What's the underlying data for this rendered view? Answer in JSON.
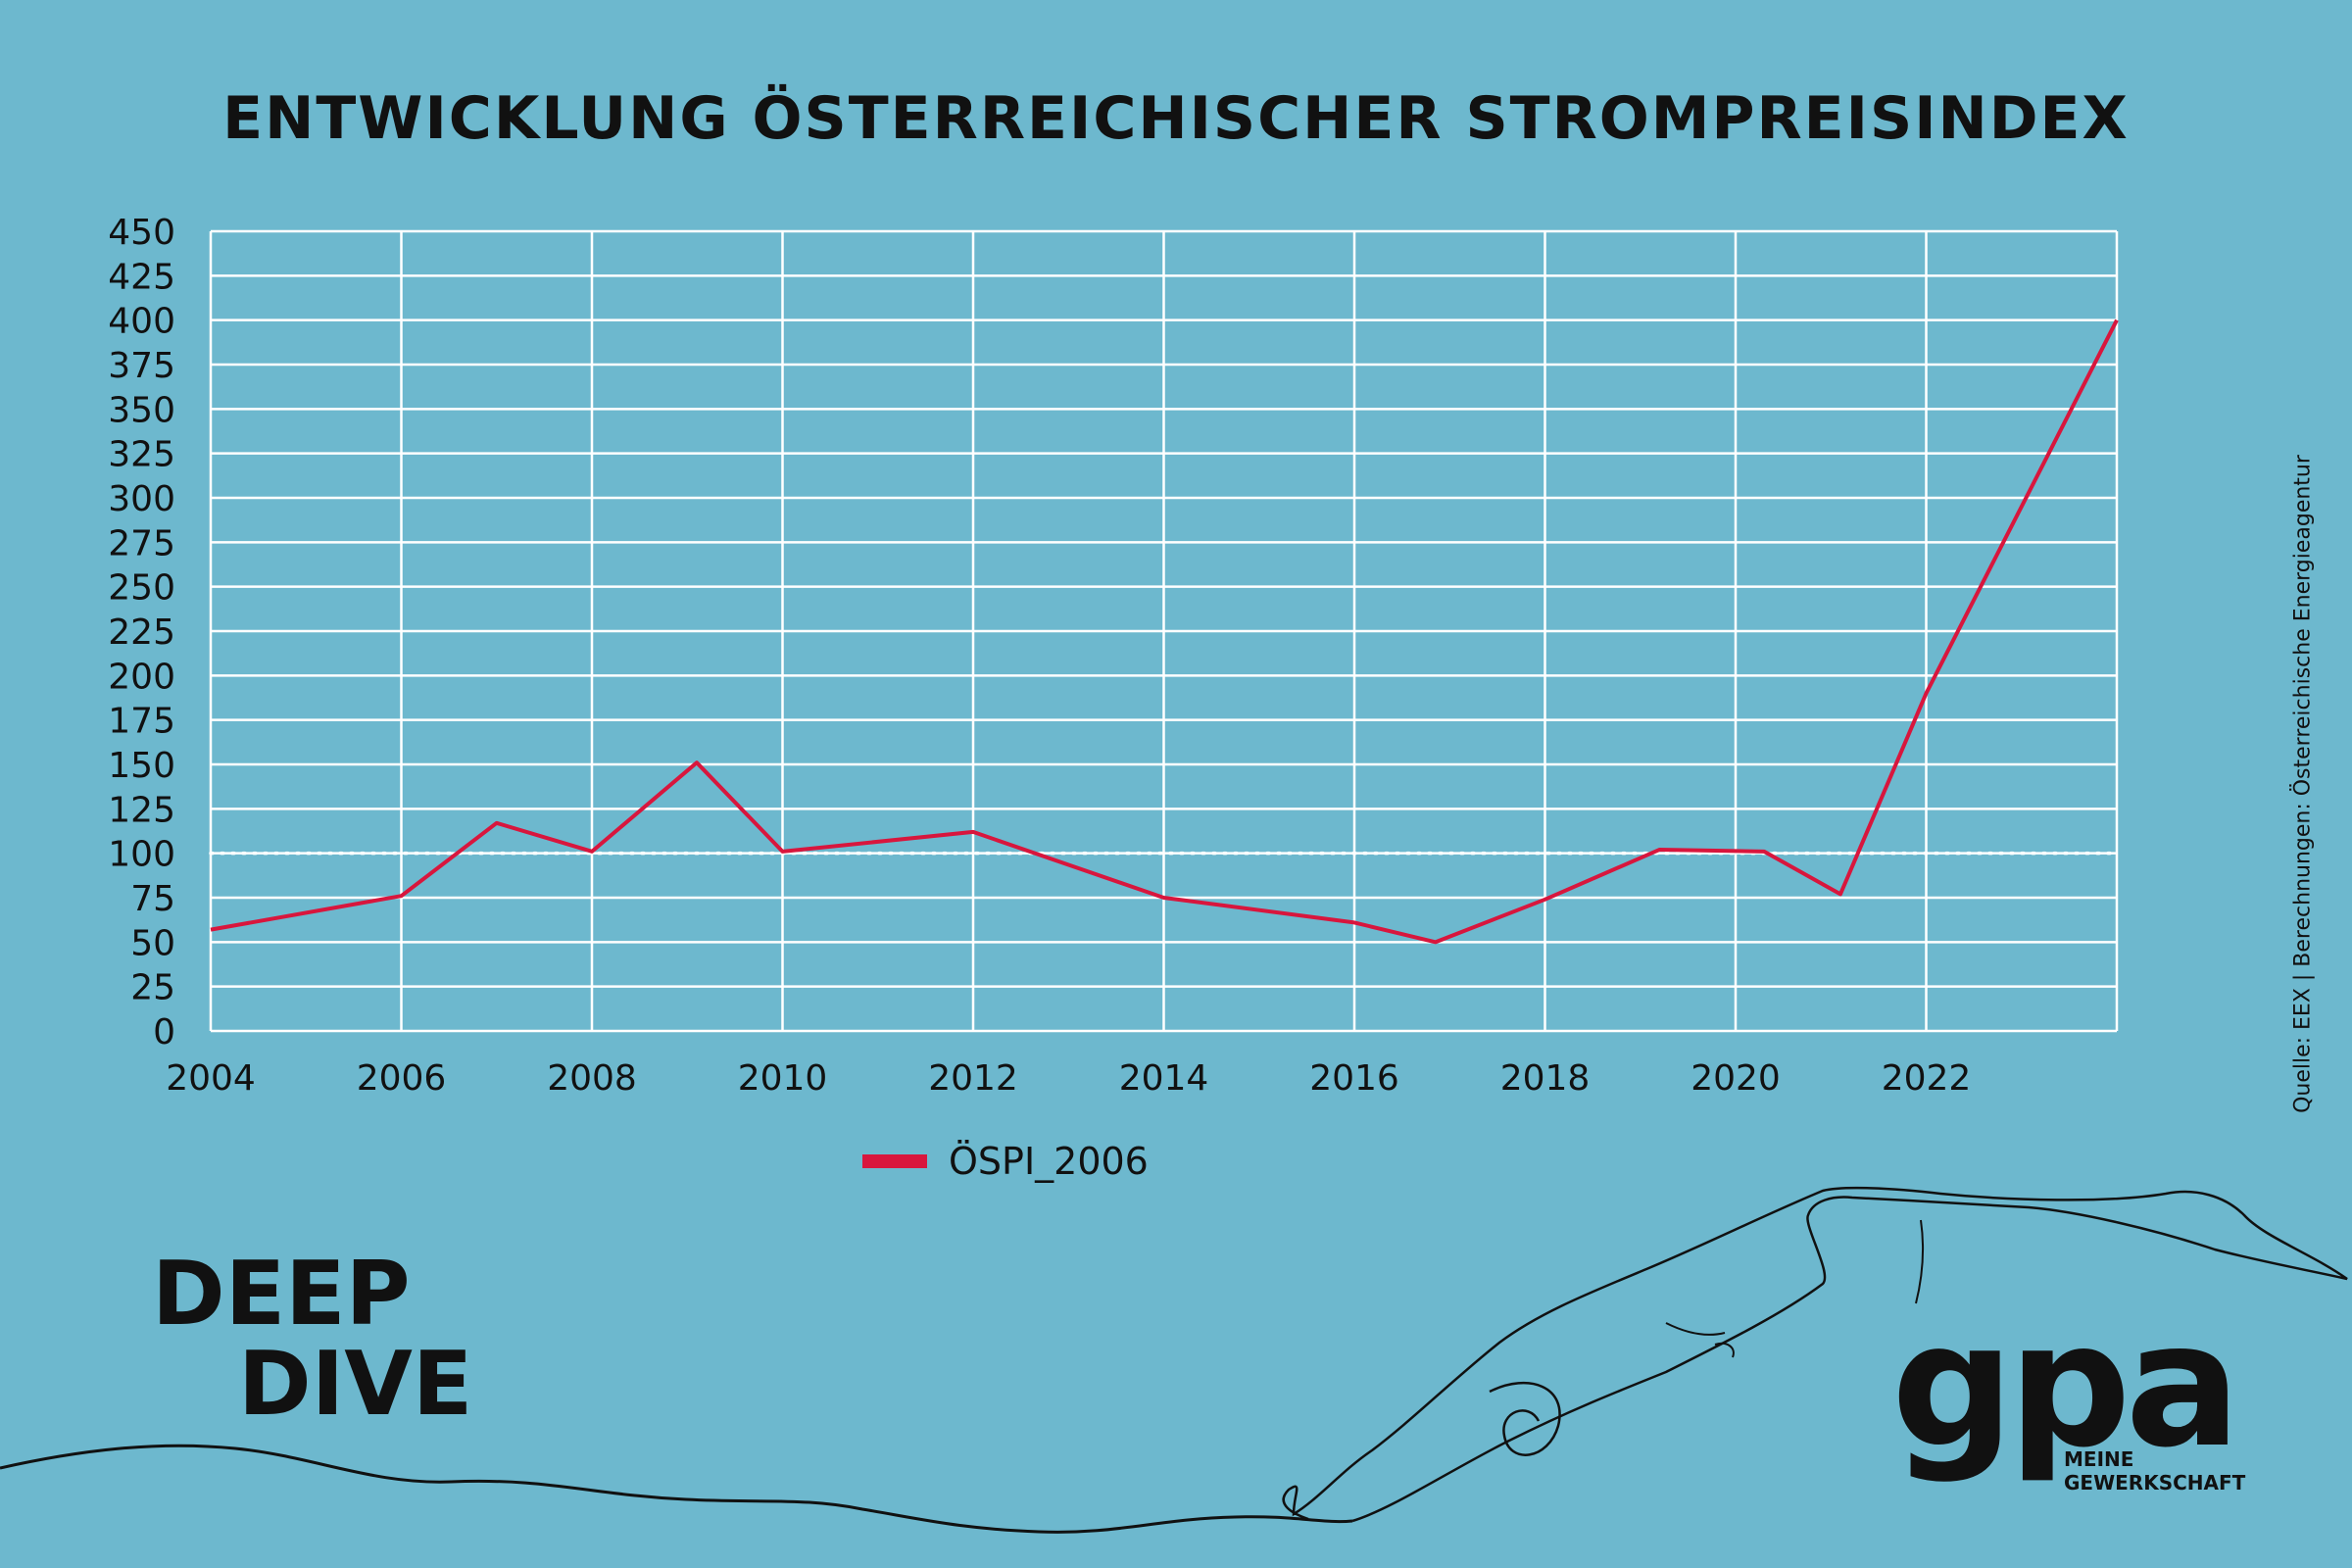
{
  "chart_data": {
    "type": "line",
    "title": "ENTWICKLUNG ÖSTERREICHISCHER STROMPREISINDEX",
    "x": [
      2004,
      2006,
      2007,
      2008,
      2009.1,
      2010,
      2012,
      2014,
      2016,
      2016.85,
      2018,
      2019.2,
      2020.3,
      2021.1,
      2022,
      2024
    ],
    "series": [
      {
        "name": "ÖSPI_2006",
        "color": "#d8163d",
        "values": [
          57,
          76,
          117,
          101,
          151,
          101,
          112,
          75,
          61,
          50,
          74,
          102,
          101,
          77,
          190,
          400
        ]
      }
    ],
    "xlim": [
      2004,
      2024
    ],
    "ylim": [
      0,
      450
    ],
    "x_ticks": [
      2004,
      2006,
      2008,
      2010,
      2012,
      2014,
      2016,
      2018,
      2020,
      2022
    ],
    "y_ticks": [
      0,
      25,
      50,
      75,
      100,
      125,
      150,
      175,
      200,
      225,
      250,
      275,
      300,
      325,
      350,
      375,
      400,
      425,
      450
    ],
    "reference_line": {
      "value": 100,
      "style": "dotted",
      "color": "#ffffff"
    },
    "grid": true,
    "legend": "bottom-center"
  },
  "source": "Quelle: EEX | Berechnungen: Österreichische Energieagentur",
  "brand": {
    "line1": "DEEP",
    "line2": "DIVE"
  },
  "logo": {
    "word": "gpa",
    "sub1": "MEINE",
    "sub2": "GEWERKSCHAFT"
  },
  "colors": {
    "background": "#6db8ce",
    "grid": "#ffffff",
    "line": "#d8163d",
    "text": "#111111"
  }
}
